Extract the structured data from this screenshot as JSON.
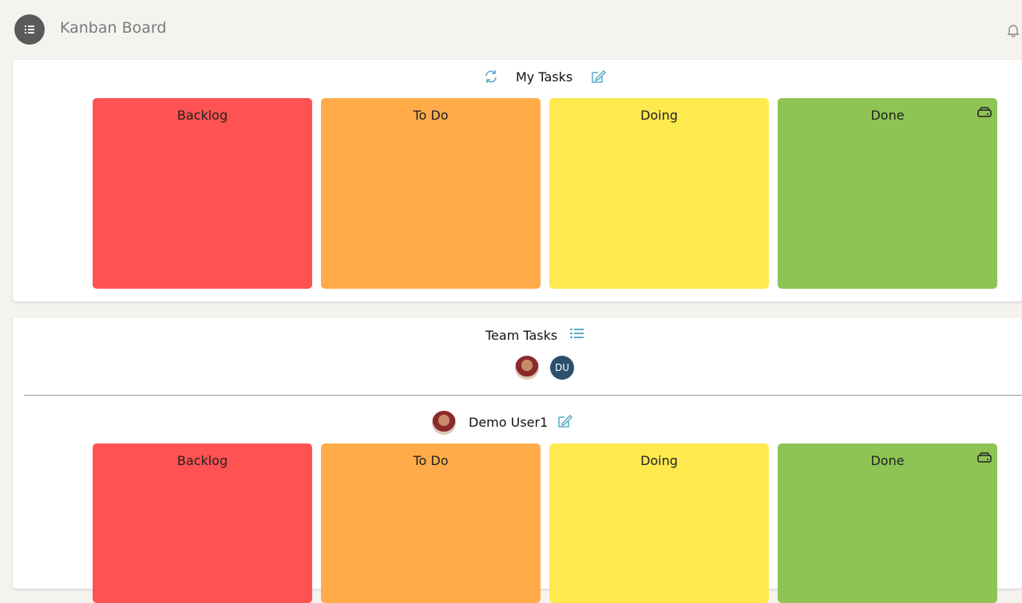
{
  "header": {
    "title": "Kanban Board"
  },
  "my_tasks": {
    "title": "My Tasks",
    "columns": [
      "Backlog",
      "To Do",
      "Doing",
      "Done"
    ]
  },
  "team_tasks": {
    "title": "Team Tasks",
    "avatars": [
      {
        "initials": "DU"
      }
    ],
    "user": {
      "name": "Demo User1",
      "columns": [
        "Backlog",
        "To Do",
        "Doing",
        "Done"
      ]
    }
  }
}
